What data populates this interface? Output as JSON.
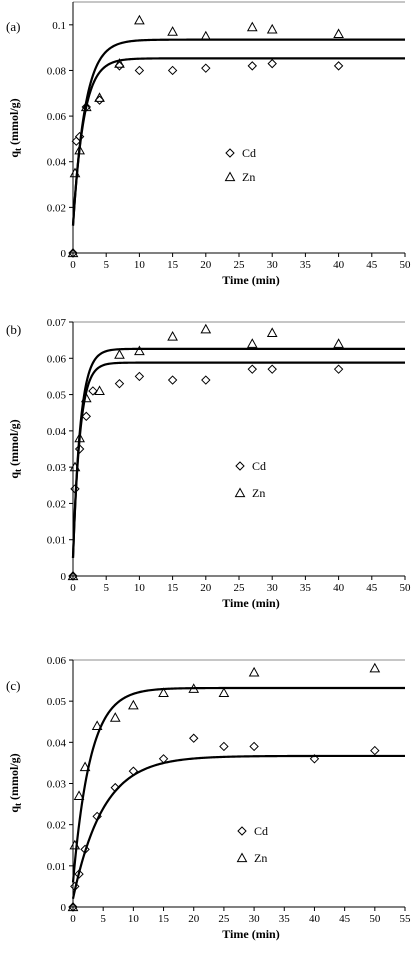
{
  "colors": {
    "ink": "#000000",
    "frame_top": "#8c8c8c",
    "background": "#ffffff"
  },
  "chart_data": [
    {
      "type": "scatter",
      "panel_label": "(a)",
      "xlabel": "Time (min)",
      "ylabel_main": "q",
      "ylabel_sub": "t",
      "ylabel_rest": " (mmol/g)",
      "xlim": [
        0,
        50
      ],
      "ylim": [
        0,
        0.11
      ],
      "xticks": [
        0,
        5,
        10,
        15,
        20,
        25,
        30,
        35,
        40,
        45,
        50
      ],
      "yticks": [
        0,
        0.02,
        0.04,
        0.06,
        0.08,
        0.1
      ],
      "ytick_labels": [
        "0",
        "0.02",
        "0.04",
        "0.06",
        "0.08",
        "0.1"
      ],
      "grid": false,
      "legend_position": "middle",
      "series": [
        {
          "name": "Cd",
          "marker": "diamond",
          "points": [
            [
              0,
              0
            ],
            [
              0.5,
              0.049
            ],
            [
              1,
              0.051
            ],
            [
              2,
              0.064
            ],
            [
              4,
              0.067
            ],
            [
              7,
              0.082
            ],
            [
              10,
              0.08
            ],
            [
              15,
              0.08
            ],
            [
              20,
              0.081
            ],
            [
              27,
              0.082
            ],
            [
              30,
              0.083
            ],
            [
              40,
              0.082
            ]
          ],
          "fit": {
            "qe": 0.0853,
            "k": 0.62,
            "q0": 0.012
          }
        },
        {
          "name": "Zn",
          "marker": "triangle",
          "points": [
            [
              0,
              0
            ],
            [
              0.3,
              0.035
            ],
            [
              1,
              0.045
            ],
            [
              2,
              0.064
            ],
            [
              4,
              0.068
            ],
            [
              7,
              0.083
            ],
            [
              10,
              0.102
            ],
            [
              15,
              0.097
            ],
            [
              20,
              0.095
            ],
            [
              27,
              0.099
            ],
            [
              30,
              0.098
            ],
            [
              40,
              0.096
            ]
          ],
          "fit": {
            "qe": 0.0935,
            "k": 0.55,
            "q0": 0.012
          }
        }
      ]
    },
    {
      "type": "scatter",
      "panel_label": "(b)",
      "xlabel": "Time (min)",
      "ylabel_main": "q",
      "ylabel_sub": "t",
      "ylabel_rest": " (mmol/g)",
      "xlim": [
        0,
        50
      ],
      "ylim": [
        0,
        0.07
      ],
      "xticks": [
        0,
        5,
        10,
        15,
        20,
        25,
        30,
        35,
        40,
        45,
        50
      ],
      "yticks": [
        0,
        0.01,
        0.02,
        0.03,
        0.04,
        0.05,
        0.06,
        0.07
      ],
      "ytick_labels": [
        "0",
        "0.01",
        "0.02",
        "0.03",
        "0.04",
        "0.05",
        "0.06",
        "0.07"
      ],
      "grid": false,
      "legend_position": "middle",
      "series": [
        {
          "name": "Cd",
          "marker": "diamond",
          "points": [
            [
              0,
              0
            ],
            [
              0.3,
              0.024
            ],
            [
              1,
              0.035
            ],
            [
              2,
              0.044
            ],
            [
              3,
              0.051
            ],
            [
              7,
              0.053
            ],
            [
              10,
              0.055
            ],
            [
              15,
              0.054
            ],
            [
              20,
              0.054
            ],
            [
              27,
              0.057
            ],
            [
              30,
              0.057
            ],
            [
              40,
              0.057
            ]
          ],
          "fit": {
            "qe": 0.0588,
            "k": 0.95,
            "q0": 0.005
          }
        },
        {
          "name": "Zn",
          "marker": "triangle",
          "points": [
            [
              0,
              0
            ],
            [
              0.3,
              0.03
            ],
            [
              1,
              0.038
            ],
            [
              2,
              0.049
            ],
            [
              4,
              0.051
            ],
            [
              7,
              0.061
            ],
            [
              10,
              0.062
            ],
            [
              15,
              0.066
            ],
            [
              20,
              0.068
            ],
            [
              27,
              0.064
            ],
            [
              30,
              0.067
            ],
            [
              40,
              0.064
            ]
          ],
          "fit": {
            "qe": 0.0626,
            "k": 0.9,
            "q0": 0.005
          }
        }
      ]
    },
    {
      "type": "scatter",
      "panel_label": "(c)",
      "xlabel": "Time (min)",
      "ylabel_main": "q",
      "ylabel_sub": "t",
      "ylabel_rest": " (mmol/g)",
      "xlim": [
        0,
        55
      ],
      "ylim": [
        0,
        0.06
      ],
      "xticks": [
        0,
        5,
        10,
        15,
        20,
        25,
        30,
        35,
        40,
        45,
        50,
        55
      ],
      "yticks": [
        0,
        0.01,
        0.02,
        0.03,
        0.04,
        0.05,
        0.06
      ],
      "ytick_labels": [
        "0",
        "0.01",
        "0.02",
        "0.03",
        "0.04",
        "0.05",
        "0.06"
      ],
      "grid": false,
      "legend_position": "lower-middle",
      "series": [
        {
          "name": "Cd",
          "marker": "diamond",
          "points": [
            [
              0,
              0
            ],
            [
              0.3,
              0.005
            ],
            [
              1,
              0.008
            ],
            [
              2,
              0.014
            ],
            [
              4,
              0.022
            ],
            [
              7,
              0.029
            ],
            [
              10,
              0.033
            ],
            [
              15,
              0.036
            ],
            [
              20,
              0.041
            ],
            [
              25,
              0.039
            ],
            [
              30,
              0.039
            ],
            [
              40,
              0.036
            ],
            [
              50,
              0.038
            ]
          ],
          "fit": {
            "qe": 0.0367,
            "k": 0.2,
            "q0": 0.002
          }
        },
        {
          "name": "Zn",
          "marker": "triangle",
          "points": [
            [
              0,
              0
            ],
            [
              0.3,
              0.015
            ],
            [
              1,
              0.027
            ],
            [
              2,
              0.034
            ],
            [
              4,
              0.044
            ],
            [
              7,
              0.046
            ],
            [
              10,
              0.049
            ],
            [
              15,
              0.052
            ],
            [
              20,
              0.053
            ],
            [
              25,
              0.052
            ],
            [
              30,
              0.057
            ],
            [
              50,
              0.058
            ]
          ],
          "fit": {
            "qe": 0.0532,
            "k": 0.35,
            "q0": 0.006
          }
        }
      ]
    }
  ]
}
